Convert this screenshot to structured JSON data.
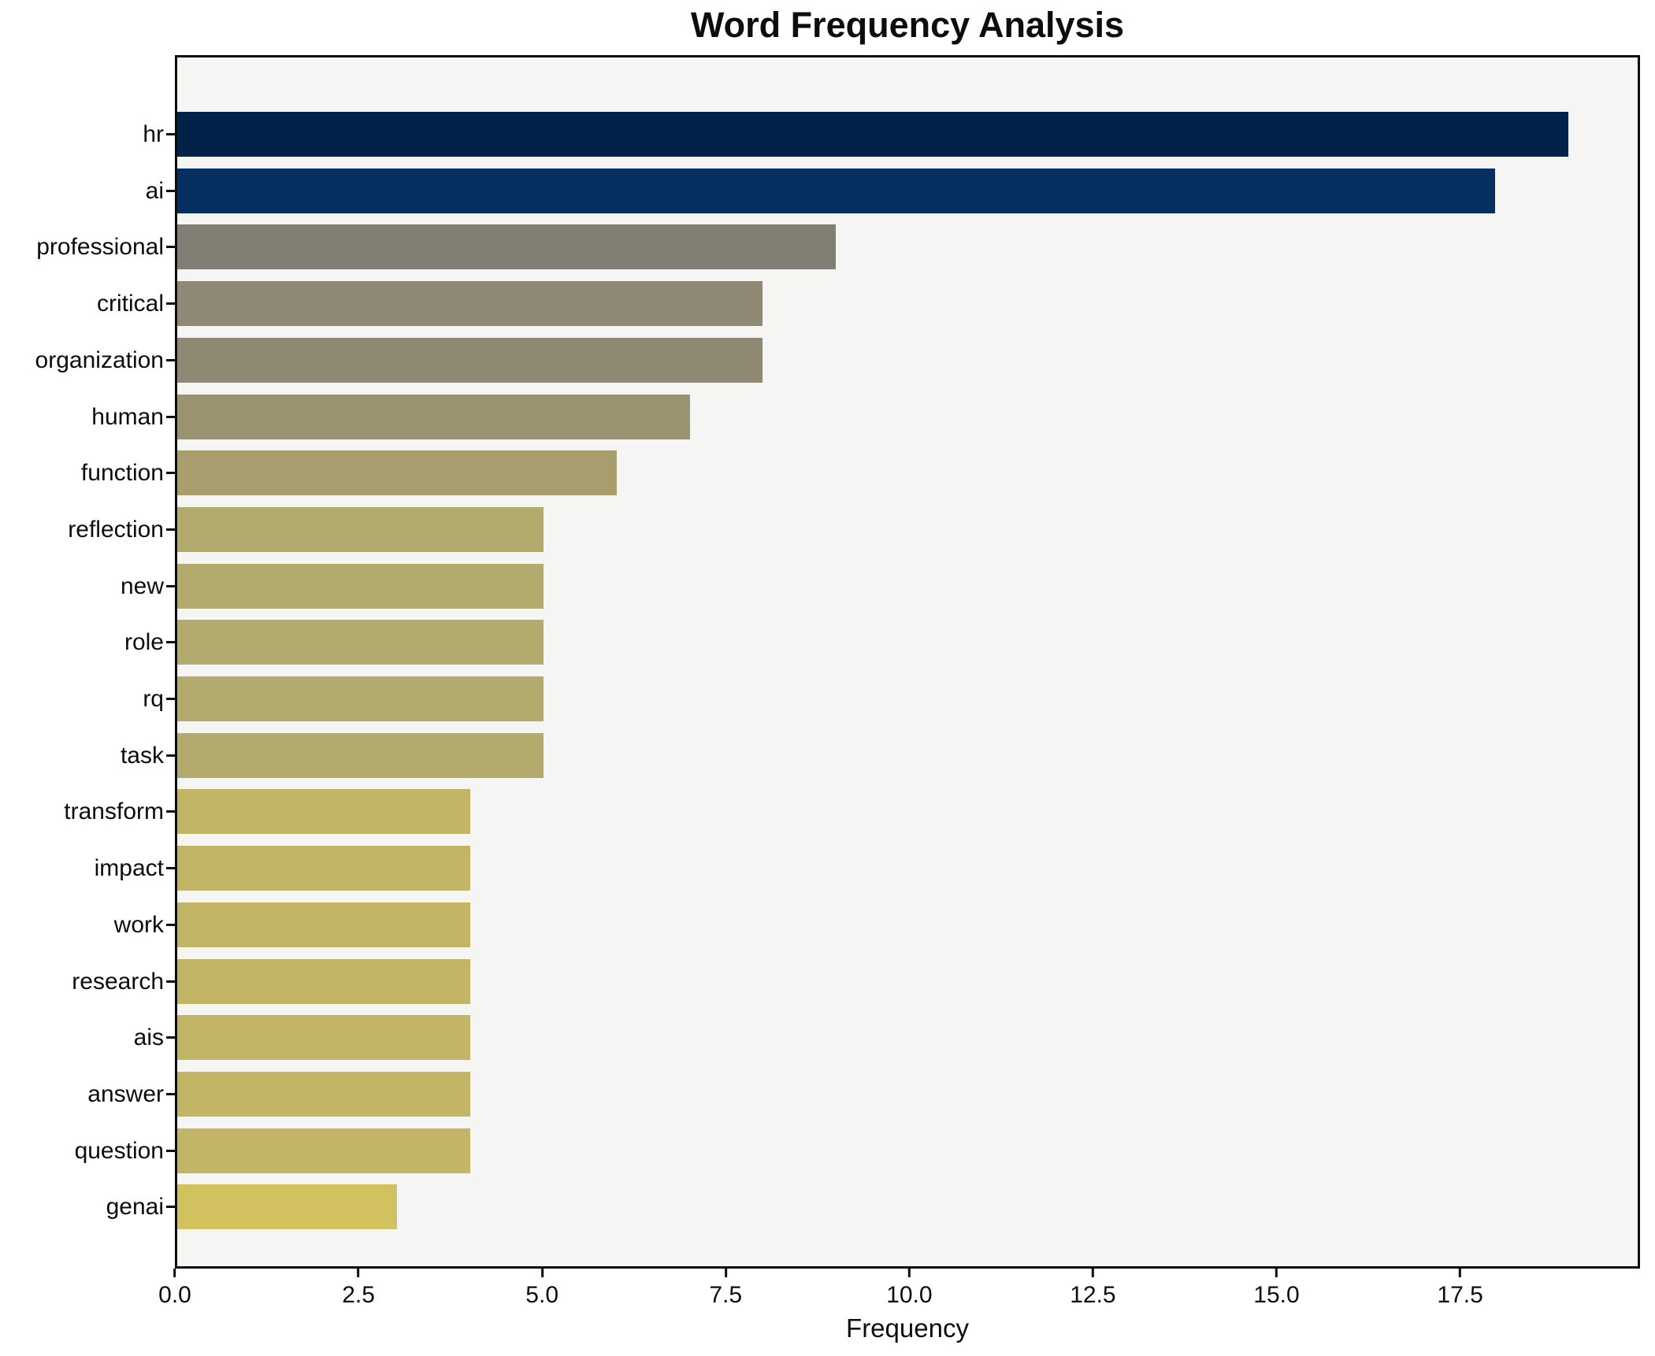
{
  "chart_data": {
    "type": "bar",
    "orientation": "horizontal",
    "title": "Word Frequency Analysis",
    "xlabel": "Frequency",
    "ylabel": "",
    "categories": [
      "hr",
      "ai",
      "professional",
      "critical",
      "organization",
      "human",
      "function",
      "reflection",
      "new",
      "role",
      "rq",
      "task",
      "transform",
      "impact",
      "work",
      "research",
      "ais",
      "answer",
      "question",
      "genai"
    ],
    "values": [
      19,
      18,
      9,
      8,
      8,
      7,
      6,
      5,
      5,
      5,
      5,
      5,
      4,
      4,
      4,
      4,
      4,
      4,
      4,
      3
    ],
    "bar_colors": [
      "#02224a",
      "#063061",
      "#827e73",
      "#8e8874",
      "#8f8974",
      "#9b9370",
      "#a89d6c",
      "#b3aa6e",
      "#b3aa6e",
      "#b3aa6e",
      "#b3aa6e",
      "#b3aa6e",
      "#c2b666",
      "#c2b666",
      "#c2b666",
      "#c2b666",
      "#c2b666",
      "#c2b666",
      "#c2b666",
      "#d2c25f"
    ],
    "xlim": [
      0,
      19.95
    ],
    "xticks": [
      0,
      2.5,
      5,
      7.5,
      10,
      12.5,
      15,
      17.5
    ],
    "xtick_labels": [
      "0.0",
      "2.5",
      "5.0",
      "7.5",
      "10.0",
      "12.5",
      "15.0",
      "17.5"
    ],
    "grid": false,
    "legend_position": "none",
    "plot_background": "#f5f5f4",
    "page_background": "#ffffff",
    "spine_color": "#0d0d0d",
    "text_color": "#0d0d0d"
  }
}
